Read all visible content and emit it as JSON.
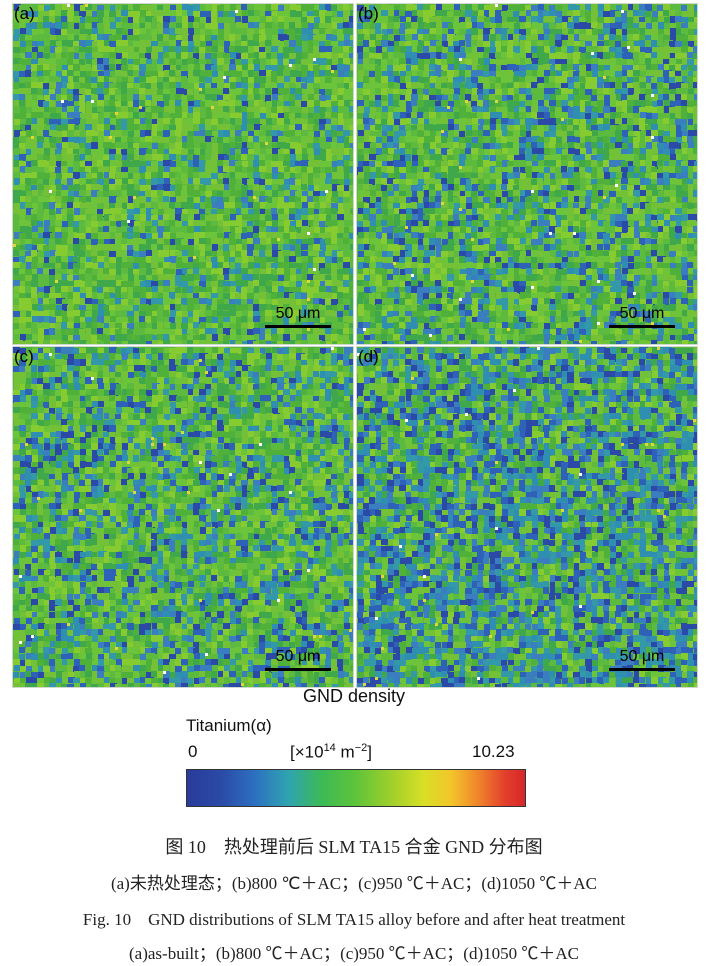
{
  "panels": [
    {
      "id": "a",
      "label": "(a)",
      "scale": "50 μm",
      "density": 0.25,
      "blue_share": 0.22
    },
    {
      "id": "b",
      "label": "(b)",
      "scale": "50 μm",
      "density": 0.25,
      "blue_share": 0.32
    },
    {
      "id": "c",
      "label": "(c)",
      "scale": "50 μm",
      "density": 0.25,
      "blue_share": 0.36
    },
    {
      "id": "d",
      "label": "(d)",
      "scale": "50 μm",
      "density": 0.25,
      "blue_share": 0.55
    }
  ],
  "colorbar": {
    "title": "GND density",
    "phase": "Titanium(α)",
    "min": "0",
    "unit_prefix": "[×10",
    "unit_exp": "14",
    "unit_mid": " m",
    "unit_exp2": "−2",
    "unit_suffix": "]",
    "max": "10.23",
    "colors": [
      "#2a3b9a",
      "#2ea4b0",
      "#3cba55",
      "#d8df26",
      "#f0862a",
      "#d7262a"
    ]
  },
  "caption": {
    "cn_title": "图 10　热处理前后 SLM TA15 合金 GND 分布图",
    "cn_sub": "(a)未热处理态；(b)800 ℃＋AC；(c)950 ℃＋AC；(d)1050 ℃＋AC",
    "en_title": "Fig. 10　GND distributions of SLM TA15 alloy before and after heat treatment",
    "en_sub": "(a)as-built；(b)800 ℃＋AC；(c)950 ℃＋AC；(d)1050 ℃＋AC"
  }
}
